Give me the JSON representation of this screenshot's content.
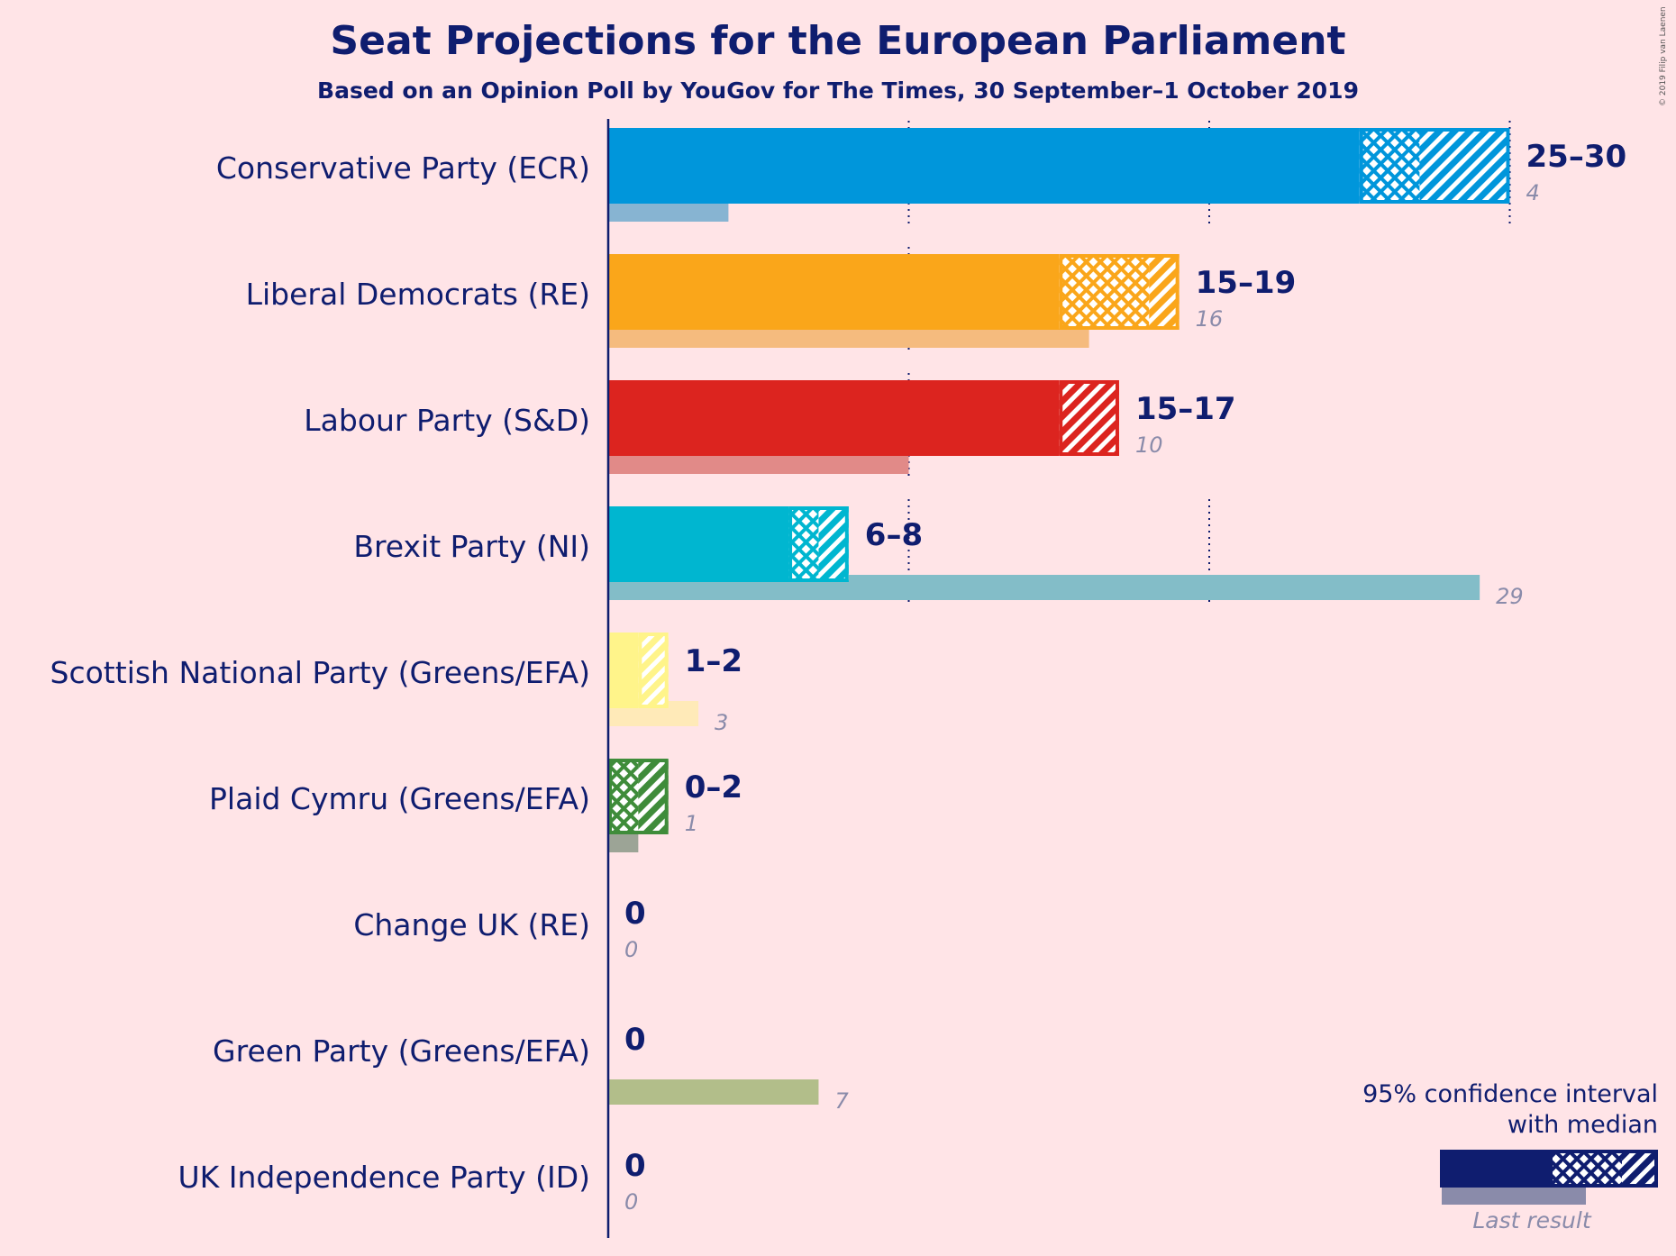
{
  "title": "Seat Projections for the European Parliament",
  "subtitle": "Based on an Opinion Poll by YouGov for The Times, 30 September–1 October 2019",
  "credit": "© 2019 Filip van Laenen",
  "legend": {
    "line1": "95% confidence interval",
    "line2": "with median",
    "last_result": "Last result"
  },
  "chart_data": {
    "type": "bar",
    "orientation": "horizontal",
    "xlim": [
      0,
      30
    ],
    "gridlines": [
      10,
      20,
      30
    ],
    "parties": [
      {
        "name": "Conservative Party (ECR)",
        "low": 25,
        "median": 27,
        "high": 30,
        "range_label": "25–30",
        "last": 4,
        "last_label": "4",
        "color": "#0096DB",
        "last_color": "#87B4D2"
      },
      {
        "name": "Liberal Democrats (RE)",
        "low": 15,
        "median": 18,
        "high": 19,
        "range_label": "15–19",
        "last": 16,
        "last_label": "16",
        "color": "#FAA61A",
        "last_color": "#F5BB7E"
      },
      {
        "name": "Labour Party (S&D)",
        "low": 15,
        "median": 15,
        "high": 17,
        "range_label": "15–17",
        "last": 10,
        "last_label": "10",
        "color": "#DC241F",
        "last_color": "#E18A88"
      },
      {
        "name": "Brexit Party (NI)",
        "low": 6,
        "median": 7,
        "high": 8,
        "range_label": "6–8",
        "last": 29,
        "last_label": "29",
        "color": "#00B6D0",
        "last_color": "#83BDC8"
      },
      {
        "name": "Scottish National Party (Greens/EFA)",
        "low": 1,
        "median": 1,
        "high": 2,
        "range_label": "1–2",
        "last": 3,
        "last_label": "3",
        "color": "#FFF48A",
        "last_color": "#FFEAB8"
      },
      {
        "name": "Plaid Cymru (Greens/EFA)",
        "low": 0,
        "median": 1,
        "high": 2,
        "range_label": "0–2",
        "last": 1,
        "last_label": "1",
        "color": "#3F8C3A",
        "last_color": "#9CA496"
      },
      {
        "name": "Change UK (RE)",
        "low": 0,
        "median": 0,
        "high": 0,
        "range_label": "0",
        "last": 0,
        "last_label": "0",
        "color": "#222222",
        "last_color": "#AAAAAA"
      },
      {
        "name": "Green Party (Greens/EFA)",
        "low": 0,
        "median": 0,
        "high": 0,
        "range_label": "0",
        "last": 7,
        "last_label": "7",
        "color": "#6AB023",
        "last_color": "#B2BE8A"
      },
      {
        "name": "UK Independence Party (ID)",
        "low": 0,
        "median": 0,
        "high": 0,
        "range_label": "0",
        "last": 0,
        "last_label": "0",
        "color": "#70147A",
        "last_color": "#AAAAAA"
      }
    ]
  }
}
